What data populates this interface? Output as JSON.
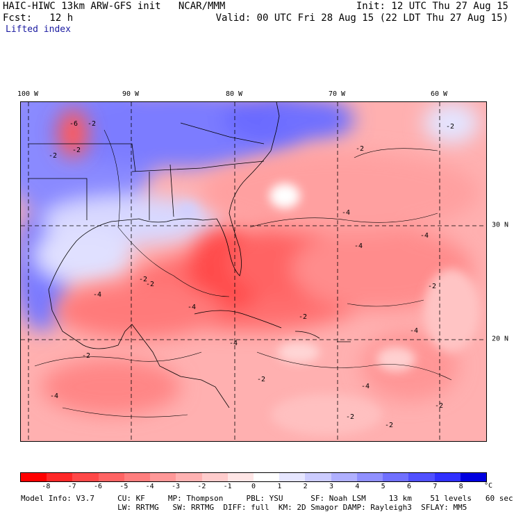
{
  "header": {
    "model_title": "HAIC-HIWC 13km ARW-GFS init   NCAR/MMM",
    "init": "Init: 12 UTC Thu 27 Aug 15",
    "fcst": "Fcst:   12 h",
    "valid": "Valid: 00 UTC Fri 28 Aug 15 (22 LDT Thu 27 Aug 15)",
    "field": "Lifted index"
  },
  "map": {
    "lon_labels": [
      "100 W",
      "90 W",
      "80 W",
      "70 W",
      "60 W"
    ],
    "lat_labels": [
      "30 N",
      "20 N"
    ],
    "contour_labels": [
      "-6",
      "-2",
      "-2",
      "-2",
      "-2",
      "-2",
      "-2",
      "-4",
      "-4",
      "-4",
      "-4",
      "-4",
      "-4",
      "-4",
      "-2",
      "-2",
      "-2",
      "-2",
      "-4",
      "-4",
      "-2",
      "-2",
      "-2",
      "-2"
    ],
    "colors": {
      "neg8": "#ff0000",
      "neg7": "#ff2020",
      "neg6": "#ff4a4a",
      "neg5": "#ff6a6a",
      "neg4": "#ff8c8c",
      "neg3": "#ffaaaa",
      "neg2": "#ffc8c8",
      "neg1": "#ffe2e2",
      "zero": "#ffffff",
      "pos1": "#e4e4ff",
      "pos2": "#c6c6ff",
      "pos3": "#a8a8ff",
      "pos4": "#8888ff",
      "pos5": "#6a6aff",
      "pos6": "#4c4cff",
      "pos7": "#2e2eff",
      "pos8": "#1010e8"
    }
  },
  "colorbar": {
    "ticks": [
      "-8",
      "-7",
      "-6",
      "-5",
      "-4",
      "-3",
      "-2",
      "-1",
      "0",
      "1",
      "2",
      "3",
      "4",
      "5",
      "6",
      "7",
      "8"
    ],
    "unit": "°C",
    "colors": [
      "#ff0000",
      "#ff2828",
      "#ff4848",
      "#ff6464",
      "#ff7e7e",
      "#ff9898",
      "#ffb2b2",
      "#ffcccc",
      "#ffe6e6",
      "#ffffff",
      "#e6e6ff",
      "#ccccff",
      "#b0b0ff",
      "#9090ff",
      "#7070ff",
      "#5050ff",
      "#3030ff",
      "#0000e0"
    ]
  },
  "footer": {
    "line1": "Model Info: V3.7     CU: KF     MP: Thompson     PBL: YSU      SF: Noah LSM     13 km    51 levels   60 sec",
    "line2": "                     LW: RRTMG   SW: RRTMG  DIFF: full  KM: 2D Smagor DAMP: Rayleigh3  SFLAY: MM5"
  }
}
